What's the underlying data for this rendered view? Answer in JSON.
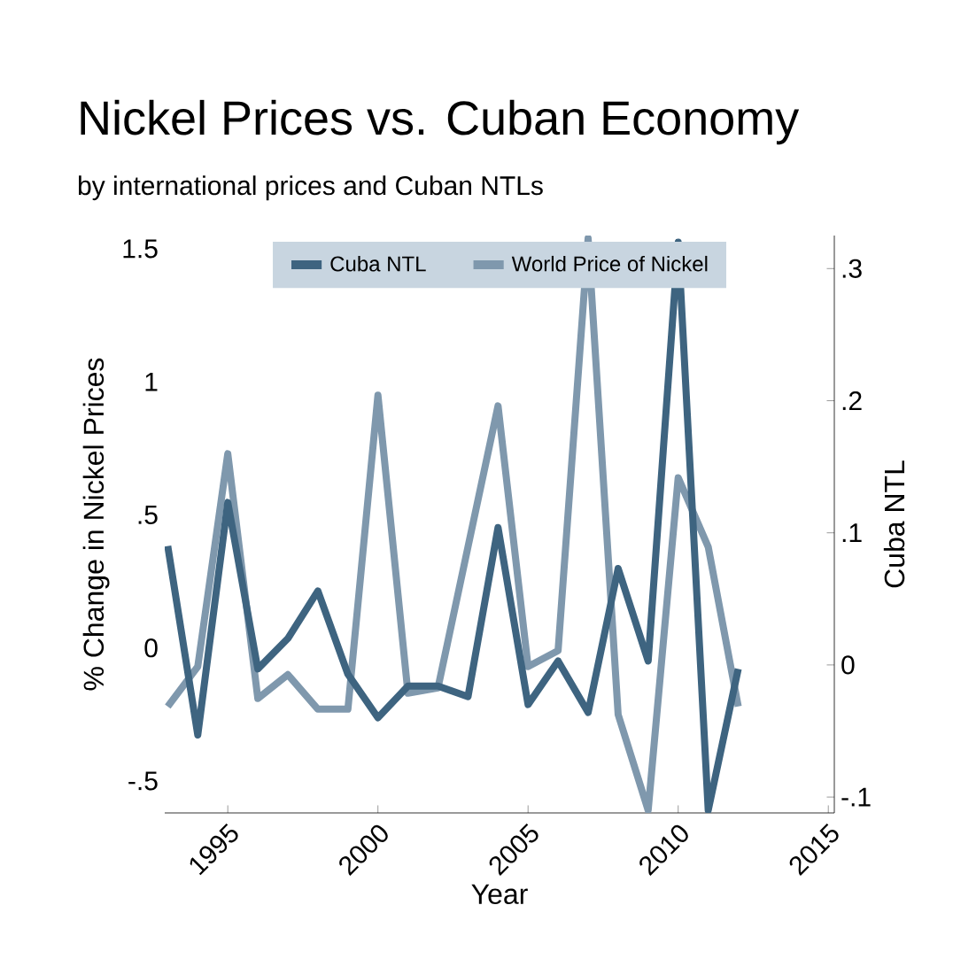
{
  "chart_data": {
    "type": "line",
    "title": "Nickel Prices vs. Cuban Economy",
    "subtitle": "by international prices and Cuban NTLs",
    "xlabel": "Year",
    "ylabel": "% Change in Nickel Prices",
    "y2label": "Cuba NTL",
    "x": [
      1993,
      1994,
      1995,
      1996,
      1997,
      1998,
      1999,
      2000,
      2001,
      2002,
      2003,
      2004,
      2005,
      2006,
      2007,
      2008,
      2009,
      2010,
      2011,
      2012
    ],
    "series": [
      {
        "name": "Cuba NTL",
        "color": "#3e6480",
        "axis": "y2",
        "values": [
          0.09,
          -0.053,
          0.123,
          -0.003,
          0.02,
          0.056,
          -0.007,
          -0.04,
          -0.016,
          -0.016,
          -0.024,
          0.104,
          -0.03,
          0.003,
          -0.036,
          0.073,
          0.003,
          0.32,
          -0.11,
          -0.003
        ]
      },
      {
        "name": "World Price of Nickel",
        "color": "#7f98ad",
        "values": [
          -0.22,
          -0.07,
          0.73,
          -0.19,
          -0.1,
          -0.23,
          -0.23,
          0.95,
          -0.17,
          -0.15,
          0.38,
          0.91,
          -0.07,
          -0.01,
          1.54,
          -0.25,
          -0.61,
          0.64,
          0.38,
          -0.22
        ]
      }
    ],
    "xlim": [
      1992.9,
      2015.2
    ],
    "xticks": [
      1995,
      2000,
      2005,
      2010,
      2015
    ],
    "ylim": [
      -0.62,
      1.55
    ],
    "yticks": [
      {
        "value": -0.5,
        "label": "-.5"
      },
      0,
      {
        "value": 0.5,
        "label": ".5"
      },
      1,
      1.5
    ],
    "y2lim": [
      -0.112,
      0.325
    ],
    "y2ticks": [
      {
        "value": -0.1,
        "label": "-.1"
      },
      0,
      {
        "value": 0.1,
        "label": ".1"
      },
      {
        "value": 0.2,
        "label": ".2"
      },
      {
        "value": 0.3,
        "label": ".3"
      }
    ],
    "legend": "top",
    "grid": false,
    "marker": "none",
    "line_style": "solid"
  }
}
